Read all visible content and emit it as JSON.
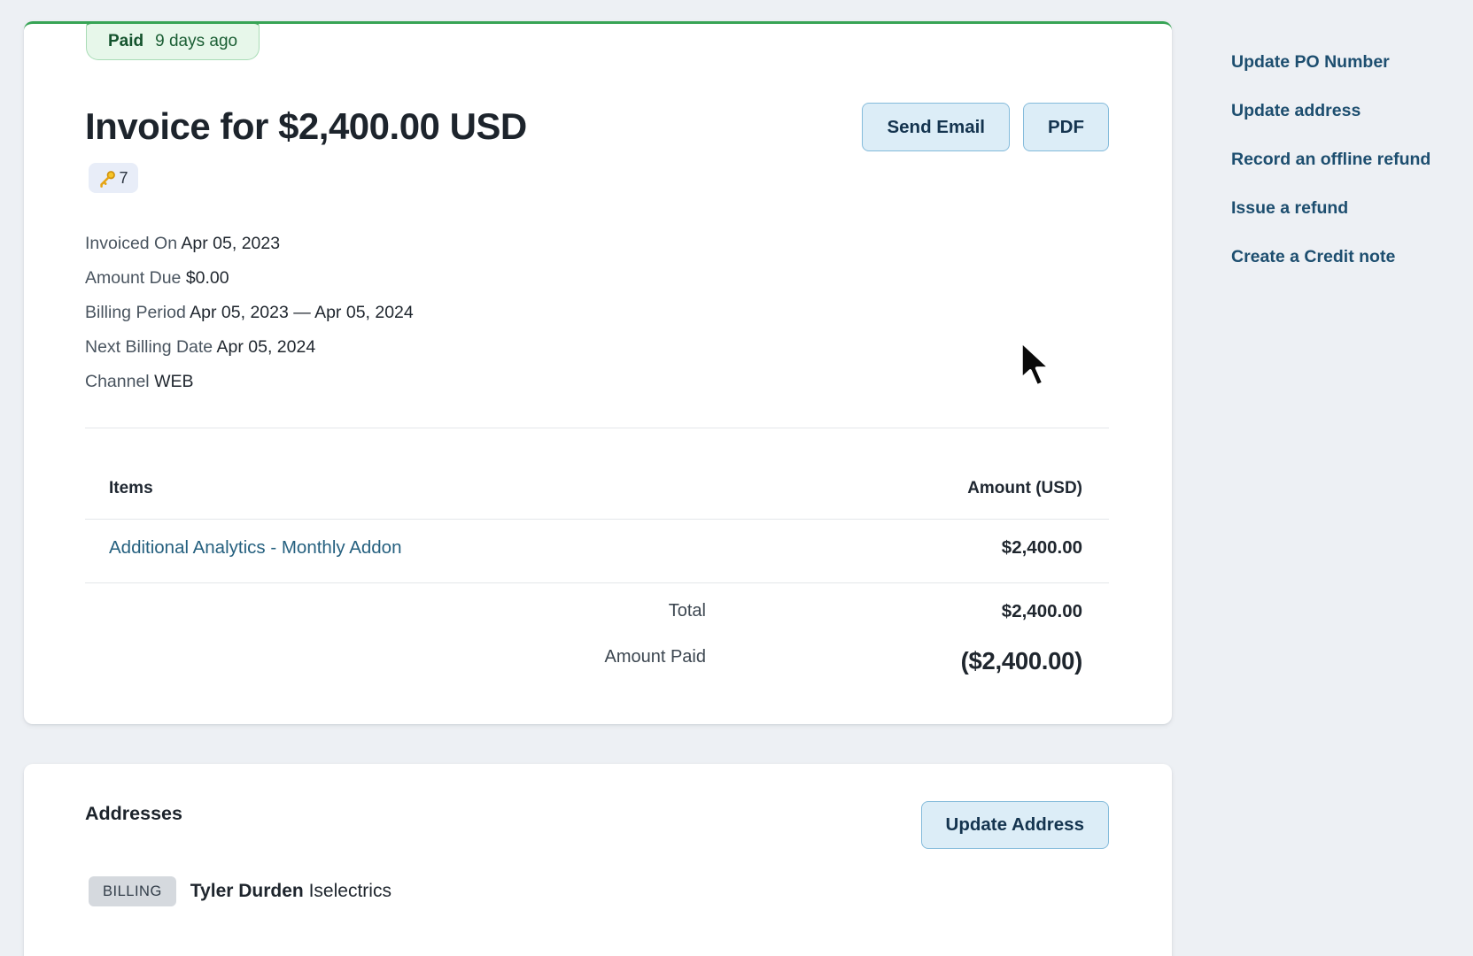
{
  "invoice_card": {
    "status_badge": {
      "status": "Paid",
      "time_ago": "9 days ago"
    },
    "title": {
      "prefix": "Invoice for ",
      "amount": "$2,400.00",
      "suffix": " USD"
    },
    "key_badge": {
      "icon": "key-icon",
      "count": "7"
    },
    "actions": {
      "send_email_label": "Send Email",
      "pdf_label": "PDF"
    },
    "details": [
      {
        "label": "Invoiced On",
        "value": "Apr 05, 2023"
      },
      {
        "label": "Amount Due",
        "value": "$0.00"
      },
      {
        "label": "Billing Period",
        "value": "Apr 05, 2023 — Apr 05, 2024"
      },
      {
        "label": "Next Billing Date",
        "value": "Apr 05, 2024"
      },
      {
        "label": "Channel",
        "value": "WEB"
      }
    ],
    "items_table": {
      "headers": {
        "items": "Items",
        "amount": "Amount (USD)"
      },
      "rows": [
        {
          "name": "Additional Analytics - Monthly Addon",
          "amount": "$2,400.00"
        }
      ],
      "summary": [
        {
          "label": "Total",
          "value": "$2,400.00",
          "emphasis": false
        },
        {
          "label": "Amount Paid",
          "value": "($2,400.00)",
          "emphasis": true
        }
      ]
    }
  },
  "addresses_card": {
    "title": "Addresses",
    "update_button_label": "Update Address",
    "billing": {
      "badge": "BILLING",
      "name": "Tyler Durden",
      "company": "Iselectrics"
    }
  },
  "sidebar": {
    "links": [
      {
        "label": "Update PO Number"
      },
      {
        "label": "Update address"
      },
      {
        "label": "Record an offline refund"
      },
      {
        "label": "Issue a refund"
      },
      {
        "label": "Create a Credit note"
      }
    ]
  },
  "colors": {
    "page_background": "#edf0f4",
    "card_top_border_green": "#37a455",
    "status_badge_bg": "#e7f7ea",
    "status_text_green": "#14532d",
    "button_bg": "#dcedf7",
    "button_border": "#84bbdb",
    "button_text": "#14344f",
    "sidebar_link": "#1d4e6f",
    "item_link": "#25607f",
    "billing_badge_bg": "#d5d9de"
  }
}
